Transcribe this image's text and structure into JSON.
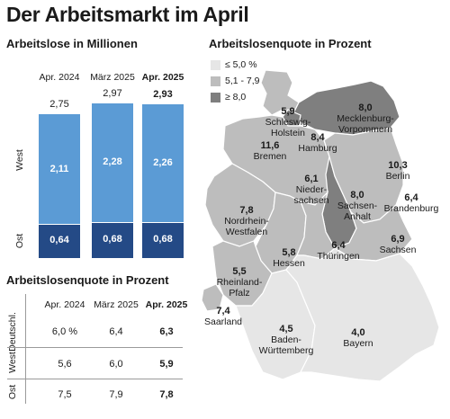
{
  "title": "Der Arbeitsmarkt im April",
  "bar_section": {
    "subtitle": "Arbeitslose in Millionen"
  },
  "table_section": {
    "subtitle": "Arbeitslosenquote in Prozent",
    "headers": [
      "Apr. 2024",
      "März 2025",
      "Apr. 2025"
    ],
    "rows": [
      {
        "label": "Deutschl.",
        "values": [
          "6,0 %",
          "6,4",
          "6,3"
        ]
      },
      {
        "label": "West",
        "values": [
          "5,6",
          "6,0",
          "5,9"
        ]
      },
      {
        "label": "Ost",
        "values": [
          "7,5",
          "7,9",
          "7,8"
        ]
      }
    ]
  },
  "map_section": {
    "subtitle": "Arbeitslosenquote in Prozent",
    "legend": [
      {
        "label": "≤ 5,0 %",
        "color": "#e6e6e6"
      },
      {
        "label": "5,1 - 7,9",
        "color": "#bdbdbd"
      },
      {
        "label": "≥ 8,0",
        "color": "#7f7f7f"
      }
    ],
    "states": [
      {
        "name": "Schleswig-Holstein",
        "lines": [
          "Schleswig-",
          "Holstein"
        ],
        "value": "5,9",
        "tier": 1
      },
      {
        "name": "Mecklenburg-Vorpommern",
        "lines": [
          "Mecklenburg-",
          "Vorpommern"
        ],
        "value": "8,0",
        "tier": 2
      },
      {
        "name": "Hamburg",
        "lines": [
          "Hamburg"
        ],
        "value": "8,4",
        "tier": 2
      },
      {
        "name": "Bremen",
        "lines": [
          "Bremen"
        ],
        "value": "11,6",
        "tier": 2
      },
      {
        "name": "Berlin",
        "lines": [
          "Berlin"
        ],
        "value": "10,3",
        "tier": 2
      },
      {
        "name": "Niedersachsen",
        "lines": [
          "Nieder-",
          "sachsen"
        ],
        "value": "6,1",
        "tier": 1
      },
      {
        "name": "Sachsen-Anhalt",
        "lines": [
          "Sachsen-",
          "Anhalt"
        ],
        "value": "8,0",
        "tier": 2
      },
      {
        "name": "Brandenburg",
        "lines": [
          "Brandenburg"
        ],
        "value": "6,4",
        "tier": 1
      },
      {
        "name": "Nordrhein-Westfalen",
        "lines": [
          "Nordrhein-",
          "Westfalen"
        ],
        "value": "7,8",
        "tier": 1
      },
      {
        "name": "Hessen",
        "lines": [
          "Hessen"
        ],
        "value": "5,8",
        "tier": 1
      },
      {
        "name": "Thüringen",
        "lines": [
          "Thüringen"
        ],
        "value": "6,4",
        "tier": 1
      },
      {
        "name": "Sachsen",
        "lines": [
          "Sachsen"
        ],
        "value": "6,9",
        "tier": 1
      },
      {
        "name": "Rheinland-Pfalz",
        "lines": [
          "Rheinland-",
          "Pfalz"
        ],
        "value": "5,5",
        "tier": 1
      },
      {
        "name": "Saarland",
        "lines": [
          "Saarland"
        ],
        "value": "7,4",
        "tier": 1
      },
      {
        "name": "Baden-Württemberg",
        "lines": [
          "Baden-",
          "Württemberg"
        ],
        "value": "4,5",
        "tier": 0
      },
      {
        "name": "Bayern",
        "lines": [
          "Bayern"
        ],
        "value": "4,0",
        "tier": 0
      }
    ]
  },
  "chart_data": [
    {
      "type": "bar",
      "title": "Arbeitslose in Millionen",
      "stacked": true,
      "categories": [
        "Apr. 2024",
        "März 2025",
        "Apr. 2025"
      ],
      "categories_display": [
        "2,75",
        "2,97",
        "2,93"
      ],
      "totals": [
        2.75,
        2.97,
        2.93
      ],
      "series": [
        {
          "name": "Ost",
          "values": [
            0.64,
            0.68,
            0.68
          ],
          "labels": [
            "0,64",
            "0,68",
            "0,68"
          ],
          "color": "#244a86"
        },
        {
          "name": "West",
          "values": [
            2.11,
            2.28,
            2.26
          ],
          "labels": [
            "2,11",
            "2,28",
            "2,26"
          ],
          "color": "#5b9bd5"
        }
      ],
      "ylim": [
        0,
        3.2
      ],
      "highlight_category": "Apr. 2025"
    },
    {
      "type": "table",
      "title": "Arbeitslosenquote in Prozent",
      "columns": [
        "Apr. 2024",
        "März 2025",
        "Apr. 2025"
      ],
      "rows": [
        "Deutschl.",
        "West",
        "Ost"
      ],
      "values": [
        [
          6.0,
          6.4,
          6.3
        ],
        [
          5.6,
          6.0,
          5.9
        ],
        [
          7.5,
          7.9,
          7.8
        ]
      ]
    }
  ]
}
